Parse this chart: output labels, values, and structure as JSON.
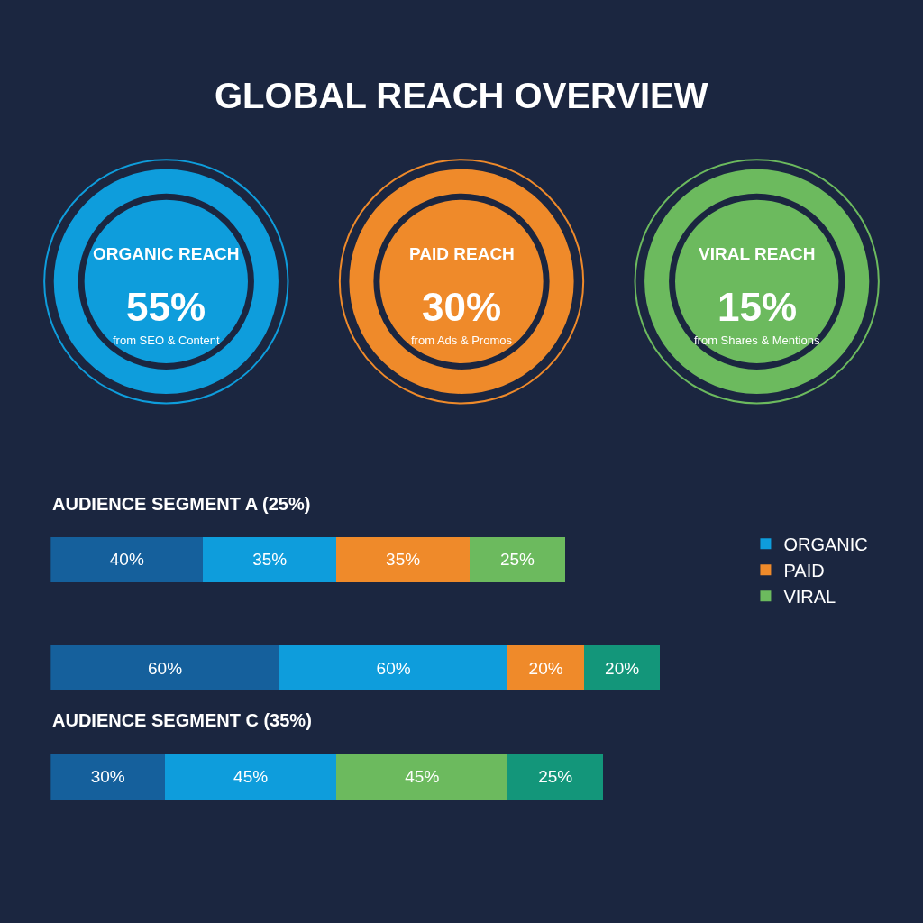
{
  "chart_data": [
    {
      "type": "other",
      "title": "GLOBAL REACH OVERVIEW",
      "categories": [
        "ORGANIC REACH",
        "PAID REACH",
        "VIRAL REACH"
      ],
      "value_labels": [
        "55%",
        "30%",
        "15%"
      ],
      "colors": [
        "#0e9ddc",
        "#ef8a2a",
        "#6cba5e"
      ],
      "annotations": [
        "from SEO & Content",
        "from Ads & Promos",
        "from Shares & Mentions"
      ]
    },
    {
      "type": "bar",
      "orientation": "horizontal",
      "stacked": true,
      "categories": [
        "AUDIENCE SEGMENT A (25%)",
        null,
        "AUDIENCE SEGMENT C (35%)"
      ],
      "legend": "right",
      "series": [
        {
          "color": "#15609c",
          "values": [
            40,
            60,
            30
          ],
          "value_labels": [
            "40%",
            "60%",
            "30%"
          ]
        },
        {
          "name": "ORGANIC",
          "color": "#0e9ddc",
          "values": [
            35,
            60,
            45
          ],
          "value_labels": [
            "35%",
            "60%",
            "45%"
          ]
        },
        {
          "name": "PAID",
          "color": "#ef8a2a",
          "values": [
            35,
            20,
            null
          ],
          "value_labels": [
            "35%",
            "20%",
            null
          ]
        },
        {
          "name": "VIRAL",
          "color": "#6cba5e",
          "values": [
            25,
            null,
            45
          ],
          "value_labels": [
            "25%",
            null,
            "45%"
          ]
        },
        {
          "color": "#13967a",
          "values": [
            null,
            20,
            25
          ],
          "value_labels": [
            null,
            "20%",
            "25%"
          ]
        }
      ]
    }
  ]
}
